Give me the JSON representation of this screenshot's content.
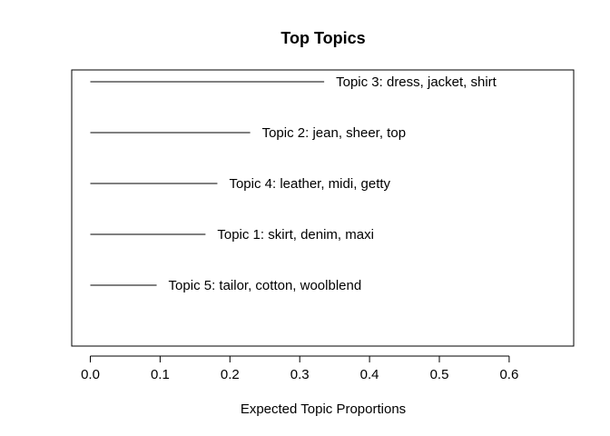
{
  "chart_data": {
    "type": "bar",
    "orientation": "horizontal",
    "title": "Top Topics",
    "xlabel": "Expected Topic Proportions",
    "ylabel": "",
    "xlim": [
      0,
      0.7
    ],
    "xticks": [
      0.0,
      0.1,
      0.2,
      0.3,
      0.4,
      0.5,
      0.6
    ],
    "xtick_labels": [
      "0.0",
      "0.1",
      "0.2",
      "0.3",
      "0.4",
      "0.5",
      "0.6"
    ],
    "categories": [
      "Topic 3: dress, jacket, shirt",
      "Topic 2: jean, sheer, top",
      "Topic 4: leather, midi, getty",
      "Topic 1: skirt, denim, maxi",
      "Topic 5: tailor, cotton, woolblend"
    ],
    "values": [
      0.335,
      0.229,
      0.182,
      0.165,
      0.095
    ],
    "legend": "none",
    "grid": false
  }
}
